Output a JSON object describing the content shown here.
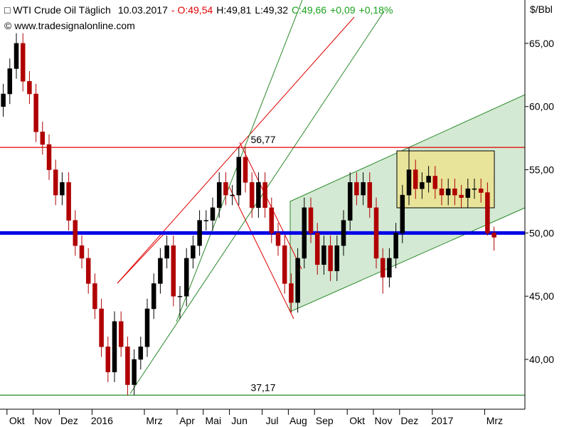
{
  "chart_data": {
    "type": "candlestick",
    "title": "WTI Crude Oil Täglich",
    "date": "10.03.2017",
    "quote": {
      "open": "O:49,54",
      "high": "H:49,81",
      "low": "L:49,32",
      "close": "C:49,66",
      "change": "+0,09",
      "change_pct": "+0,18%"
    },
    "source": "© www.tradesignalonline.com",
    "y_unit": "$/Bbl",
    "up_color": "#000000",
    "down_color": "#b00000",
    "categories": [
      null,
      "Okt",
      null,
      null,
      null,
      "Nov",
      null,
      null,
      null,
      "Dez",
      null,
      null,
      null,
      null,
      "2016",
      null,
      null,
      null,
      null,
      null,
      null,
      null,
      "Mrz",
      null,
      null,
      null,
      null,
      "Apr",
      null,
      null,
      null,
      "Mai",
      null,
      null,
      null,
      "Jun",
      null,
      null,
      null,
      null,
      "Jul",
      null,
      null,
      null,
      "Aug",
      null,
      null,
      null,
      "Sep",
      null,
      null,
      null,
      null,
      "Okt",
      null,
      null,
      null,
      "Nov",
      null,
      null,
      null,
      "Dez",
      null,
      null,
      null,
      null,
      "2017",
      null,
      null,
      null,
      null,
      null,
      null,
      null,
      "Mrz",
      null
    ],
    "open": [
      60,
      61,
      63,
      65,
      62,
      61,
      58,
      57,
      55,
      53,
      54,
      51,
      49,
      48,
      46,
      44,
      41,
      39,
      43,
      41,
      38,
      40,
      41,
      44,
      46,
      48,
      49,
      45,
      45,
      48,
      49,
      51,
      51,
      52,
      54,
      53,
      53,
      56,
      54,
      52,
      54,
      52,
      50,
      49,
      46,
      44.5,
      48,
      52,
      50,
      47.5,
      49,
      47,
      49,
      51,
      54,
      53,
      54,
      52,
      48,
      46.5,
      48,
      50,
      53,
      55,
      53.5,
      54,
      54.5,
      53.5,
      53,
      53.5,
      53,
      52.8,
      53.5,
      53.5,
      53.2,
      50
    ],
    "high": [
      61.8,
      63.8,
      65.8,
      65.8,
      62.8,
      61.8,
      58.8,
      57.8,
      55.8,
      54.8,
      54.8,
      51.8,
      49.8,
      48.8,
      46.8,
      44.8,
      41.8,
      43.8,
      43.8,
      41.8,
      40.8,
      41.8,
      44.8,
      46.8,
      48.8,
      49.8,
      49.8,
      45.8,
      48.8,
      49.8,
      51.8,
      51.8,
      52.8,
      54.8,
      54.8,
      53.8,
      56.77,
      56.8,
      54.8,
      54.8,
      54.8,
      52.8,
      50.8,
      49.8,
      46.8,
      48.8,
      52.8,
      52.8,
      50.8,
      49.8,
      49.8,
      49.8,
      51.8,
      54.8,
      54.8,
      54.8,
      54.8,
      52.8,
      48.8,
      48.8,
      50.8,
      53.8,
      56.8,
      55.8,
      54.8,
      55.3,
      55.3,
      54.3,
      54.3,
      54.3,
      53.8,
      54.3,
      54.3,
      54.3,
      54,
      50.5
    ],
    "low": [
      59.2,
      60.2,
      62.2,
      61.2,
      60.2,
      57.2,
      56.2,
      54.2,
      52.2,
      52.2,
      50.2,
      48.2,
      47.2,
      45.2,
      43.2,
      40.2,
      38.2,
      38.2,
      40.2,
      37.17,
      37.2,
      39.2,
      40.2,
      43.2,
      45.2,
      47.2,
      44.2,
      43.2,
      44.2,
      47.2,
      48.2,
      50.2,
      50.2,
      51.2,
      52.2,
      52.2,
      52.2,
      53.2,
      51.2,
      51.2,
      51.2,
      49.2,
      48.2,
      45.2,
      43.7,
      43.7,
      47.2,
      49.2,
      46.7,
      46.7,
      46.2,
      46.2,
      48.2,
      50.2,
      52.2,
      52.2,
      51.2,
      47.2,
      45.2,
      45.7,
      47.2,
      49.2,
      52.2,
      52.7,
      52.7,
      53.2,
      52.7,
      52.2,
      52.2,
      52.2,
      52,
      52,
      52.7,
      52.4,
      49.8,
      48.6
    ],
    "close": [
      61,
      63,
      65,
      62,
      61,
      58,
      57,
      55,
      53,
      54,
      51,
      49,
      48,
      46,
      44,
      41,
      39,
      43,
      41,
      38,
      40,
      41,
      44,
      46,
      48,
      49,
      45,
      45,
      48,
      49,
      51,
      51,
      52,
      54,
      53,
      53,
      56,
      54,
      52,
      54,
      52,
      50,
      49,
      46,
      44.5,
      48,
      52,
      50,
      47.5,
      49,
      47,
      49,
      51,
      54,
      53,
      54,
      52,
      48,
      46.5,
      48,
      50,
      53,
      55,
      53.5,
      54,
      54.5,
      53.5,
      53,
      53.5,
      53,
      52.8,
      53.5,
      53.5,
      53.2,
      50,
      49.66
    ],
    "ylim": [
      36.06,
      68.43
    ],
    "yticks": [
      {
        "value": 40,
        "label": "40,00"
      },
      {
        "value": 45,
        "label": "45,00"
      },
      {
        "value": 50,
        "label": "50,00"
      },
      {
        "value": 55,
        "label": "55,00"
      },
      {
        "value": 60,
        "label": "60,00"
      },
      {
        "value": 65,
        "label": "65,00"
      }
    ],
    "levels": [
      {
        "value": 56.77,
        "label": "56,77",
        "color": "#e00000"
      },
      {
        "value": 37.17,
        "label": "37,17",
        "color": "#2a8a2a"
      },
      {
        "value": 50,
        "color": "#0000e6"
      }
    ]
  }
}
